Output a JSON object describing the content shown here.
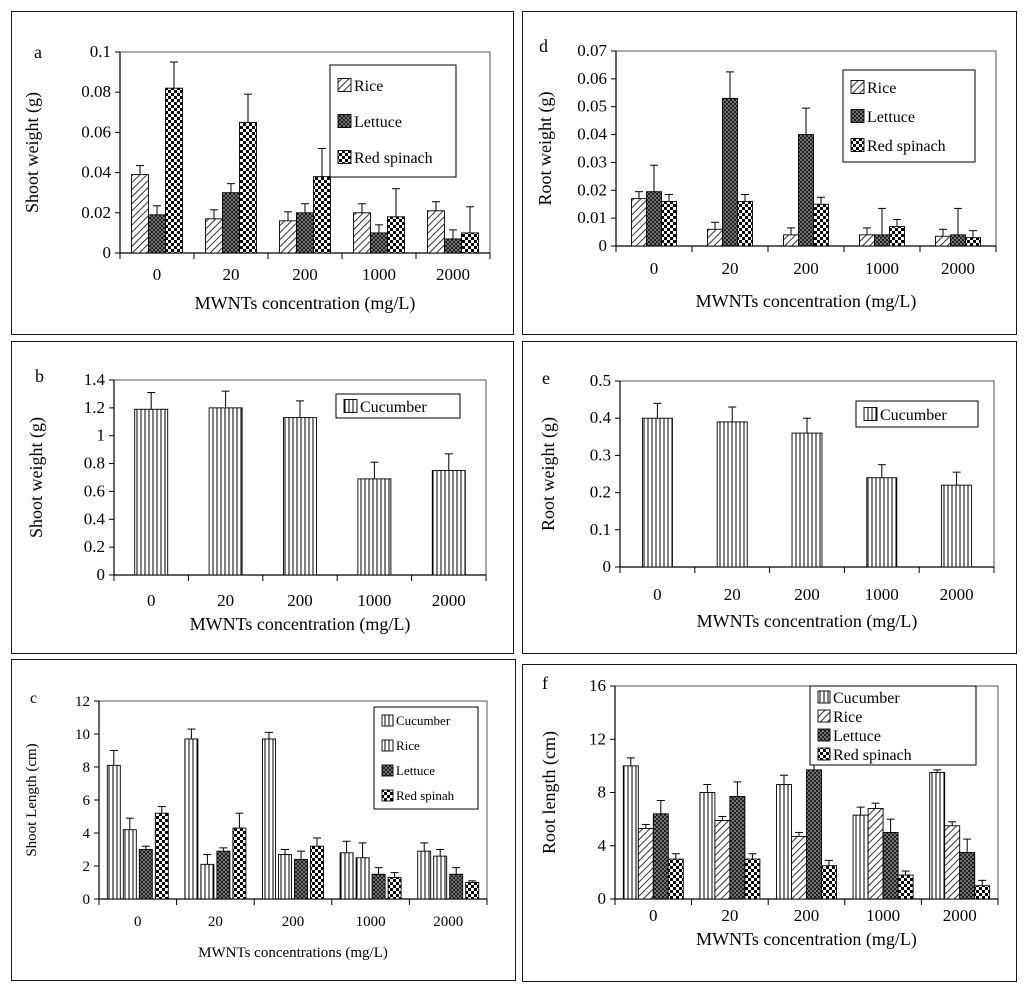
{
  "charts": [
    {
      "id": "a",
      "panel_label": "a",
      "type": "bar",
      "categories": [
        "0",
        "20",
        "200",
        "1000",
        "2000"
      ],
      "series": [
        {
          "name": "Rice",
          "pattern": "diag",
          "values": [
            0.039,
            0.017,
            0.016,
            0.02,
            0.021
          ],
          "errors": [
            0.0045,
            0.0045,
            0.0045,
            0.0045,
            0.0045
          ]
        },
        {
          "name": "Lettuce",
          "pattern": "cross",
          "values": [
            0.019,
            0.03,
            0.02,
            0.01,
            0.007
          ],
          "errors": [
            0.0045,
            0.0045,
            0.0045,
            0.004,
            0.0045
          ]
        },
        {
          "name": "Red spinach",
          "pattern": "check",
          "values": [
            0.082,
            0.065,
            0.038,
            0.018,
            0.01
          ],
          "errors": [
            0.013,
            0.014,
            0.014,
            0.014,
            0.013
          ]
        }
      ],
      "ylabel": "Shoot weight (g)",
      "xlabel": "MWNTs concentration (mg/L)",
      "ylim": [
        0,
        0.1
      ],
      "yticks": [
        "0",
        "0.02",
        "0.04",
        "0.06",
        "0.08",
        "0.1"
      ],
      "legend_position": "top-right"
    },
    {
      "id": "d",
      "panel_label": "d",
      "type": "bar",
      "categories": [
        "0",
        "20",
        "200",
        "1000",
        "2000"
      ],
      "series": [
        {
          "name": "Rice",
          "pattern": "diag",
          "values": [
            0.017,
            0.006,
            0.004,
            0.004,
            0.0035
          ],
          "errors": [
            0.0025,
            0.0025,
            0.0025,
            0.0025,
            0.0025
          ]
        },
        {
          "name": "Lettuce",
          "pattern": "cross",
          "values": [
            0.0195,
            0.053,
            0.04,
            0.004,
            0.004
          ],
          "errors": [
            0.0095,
            0.0095,
            0.0095,
            0.0095,
            0.0095
          ]
        },
        {
          "name": "Red spinach",
          "pattern": "check",
          "values": [
            0.016,
            0.016,
            0.015,
            0.007,
            0.003
          ],
          "errors": [
            0.0025,
            0.0025,
            0.0025,
            0.0025,
            0.0025
          ]
        }
      ],
      "ylabel": "Root weight (g)",
      "xlabel": "MWNTs concentration (mg/L)",
      "ylim": [
        0,
        0.07
      ],
      "yticks": [
        "0",
        "0.01",
        "0.02",
        "0.03",
        "0.04",
        "0.05",
        "0.06",
        "0.07"
      ],
      "legend_position": "top-right"
    },
    {
      "id": "b",
      "panel_label": "b",
      "type": "bar",
      "categories": [
        "0",
        "20",
        "200",
        "1000",
        "2000"
      ],
      "series": [
        {
          "name": "Cucumber",
          "pattern": "vert",
          "values": [
            1.19,
            1.2,
            1.13,
            0.69,
            0.75
          ],
          "errors": [
            0.12,
            0.12,
            0.12,
            0.12,
            0.12
          ]
        }
      ],
      "ylabel": "Shoot weight (g)",
      "xlabel": "MWNTs concentration (mg/L)",
      "ylim": [
        0,
        1.4
      ],
      "yticks": [
        "0",
        "0.2",
        "0.4",
        "0.6",
        "0.8",
        "1",
        "1.2",
        "1.4"
      ],
      "legend_position": "top-right"
    },
    {
      "id": "e",
      "panel_label": "e",
      "type": "bar",
      "categories": [
        "0",
        "20",
        "200",
        "1000",
        "2000"
      ],
      "series": [
        {
          "name": "Cucumber",
          "pattern": "vert",
          "values": [
            0.4,
            0.39,
            0.36,
            0.24,
            0.22
          ],
          "errors": [
            0.04,
            0.04,
            0.04,
            0.035,
            0.035
          ]
        }
      ],
      "ylabel": "Root weight (g)",
      "xlabel": "MWNTs concentration (mg/L)",
      "ylim": [
        0,
        0.5
      ],
      "yticks": [
        "0",
        "0.1",
        "0.2",
        "0.3",
        "0.4",
        "0.5"
      ],
      "legend_position": "top-right"
    },
    {
      "id": "c",
      "panel_label": "c",
      "type": "bar",
      "categories": [
        "0",
        "20",
        "200",
        "1000",
        "2000"
      ],
      "series": [
        {
          "name": "Cucumber",
          "pattern": "vert",
          "values": [
            8.1,
            9.7,
            9.7,
            2.8,
            2.9
          ],
          "errors": [
            0.9,
            0.6,
            0.4,
            0.7,
            0.5
          ]
        },
        {
          "name": "Rice",
          "pattern": "vert",
          "values": [
            4.2,
            2.1,
            2.7,
            2.5,
            2.6
          ],
          "errors": [
            0.7,
            0.6,
            0.3,
            0.9,
            0.4
          ]
        },
        {
          "name": "Lettuce",
          "pattern": "cross",
          "values": [
            3.0,
            2.9,
            2.4,
            1.5,
            1.5
          ],
          "errors": [
            0.2,
            0.2,
            0.5,
            0.4,
            0.4
          ]
        },
        {
          "name": "Red spinah",
          "pattern": "check",
          "values": [
            5.2,
            4.3,
            3.2,
            1.3,
            1.0
          ],
          "errors": [
            0.4,
            0.9,
            0.5,
            0.3,
            0.1
          ]
        }
      ],
      "ylabel": "Shoot Length  (cm)",
      "xlabel": "MWNTs concentrations  (mg/L)",
      "ylim": [
        0,
        12
      ],
      "yticks": [
        "0",
        "2",
        "4",
        "6",
        "8",
        "10",
        "12"
      ],
      "legend_position": "top-right"
    },
    {
      "id": "f",
      "panel_label": "f",
      "type": "bar",
      "categories": [
        "0",
        "20",
        "200",
        "1000",
        "2000"
      ],
      "series": [
        {
          "name": "Cucumber",
          "pattern": "vert",
          "values": [
            10.0,
            8.0,
            8.6,
            6.3,
            9.5
          ],
          "errors": [
            0.6,
            0.6,
            0.7,
            0.6,
            0.2
          ]
        },
        {
          "name": "Rice",
          "pattern": "diag",
          "values": [
            5.3,
            5.9,
            4.7,
            6.8,
            5.5
          ],
          "errors": [
            0.3,
            0.3,
            0.3,
            0.4,
            0.3
          ]
        },
        {
          "name": "Lettuce",
          "pattern": "cross",
          "values": [
            6.4,
            7.7,
            9.7,
            5.0,
            3.5
          ],
          "errors": [
            1.0,
            1.1,
            1.1,
            1.0,
            1.0
          ]
        },
        {
          "name": "Red spinach",
          "pattern": "check",
          "values": [
            3.0,
            3.0,
            2.5,
            1.8,
            1.0
          ],
          "errors": [
            0.4,
            0.4,
            0.4,
            0.3,
            0.4
          ]
        }
      ],
      "ylabel": "Root length (cm)",
      "xlabel": "MWNTs concentration (mg/L)",
      "ylim": [
        0,
        16
      ],
      "yticks": [
        "0",
        "4",
        "8",
        "12",
        "16"
      ],
      "legend_position": "top-right"
    }
  ]
}
